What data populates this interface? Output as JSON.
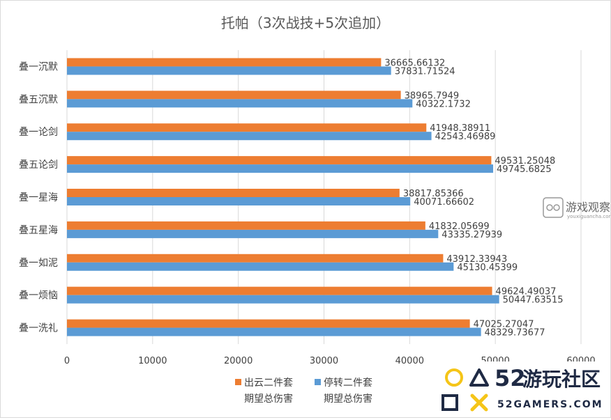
{
  "chart_data": {
    "type": "bar",
    "orientation": "horizontal",
    "title": "托帕（3次战技+5次追加）",
    "categories": [
      "叠一沉默",
      "叠五沉默",
      "叠一论剑",
      "叠五论剑",
      "叠一星海",
      "叠五星海",
      "叠一如泥",
      "叠一烦恼",
      "叠一洗礼"
    ],
    "series": [
      {
        "name_line1": "出云二件套",
        "name_line2": "期望总伤害",
        "color": "#ED7D31",
        "values": [
          36665.66132,
          38965.7949,
          41948.38911,
          49531.25048,
          38817.85366,
          41832.05699,
          43912.33943,
          49624.49037,
          47025.27047
        ],
        "labels": [
          "36665.66132",
          "38965.7949",
          "41948.38911",
          "49531.25048",
          "38817.85366",
          "41832.05699",
          "43912.33943",
          "49624.49037",
          "47025.27047"
        ]
      },
      {
        "name_line1": "停转二件套",
        "name_line2": "期望总伤害",
        "color": "#5B9BD5",
        "values": [
          37831.71524,
          40322.1732,
          42543.46989,
          49745.6825,
          40071.66602,
          43335.27939,
          45130.45399,
          50447.63515,
          48329.73677
        ],
        "labels": [
          "37831.71524",
          "40322.1732",
          "42543.46989",
          "49745.6825",
          "40071.66602",
          "43335.27939",
          "45130.45399",
          "50447.63515",
          "48329.73677"
        ]
      }
    ],
    "xlim": [
      0,
      60000
    ],
    "xticks": [
      "0",
      "10000",
      "20000",
      "30000",
      "40000",
      "50000",
      "60000"
    ],
    "grid": true,
    "legend_position": "bottom"
  },
  "watermarks": {
    "youxi_cn": "游戏观察",
    "youxi_en": "youxiguancha.com",
    "brand_num": "52",
    "brand_cn": "游玩社区",
    "brand_en": "52GAMERS.COM"
  }
}
